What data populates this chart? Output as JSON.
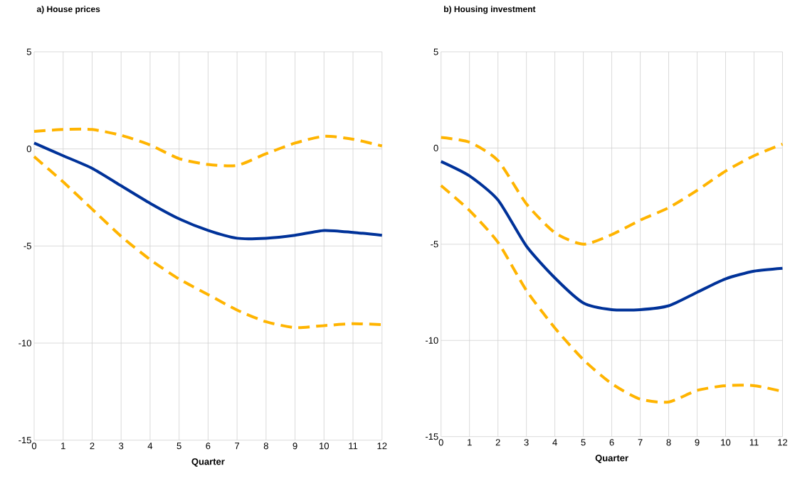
{
  "chart_data": [
    {
      "type": "line",
      "title": "a) House prices",
      "xlabel": "Quarter",
      "x": [
        0,
        1,
        2,
        3,
        4,
        5,
        6,
        7,
        8,
        9,
        10,
        11,
        12
      ],
      "xlim": [
        0,
        12
      ],
      "ylim": [
        -15,
        5
      ],
      "xticks": [
        0,
        1,
        2,
        3,
        4,
        5,
        6,
        7,
        8,
        9,
        10,
        11,
        12
      ],
      "yticks": [
        -15,
        -10,
        -5,
        0,
        5
      ],
      "grid": true,
      "series": [
        {
          "color": "#ffb400",
          "line_style": "dashed",
          "values": [
            0.9,
            1.0,
            1.0,
            0.7,
            0.2,
            -0.5,
            -0.8,
            -0.85,
            -0.25,
            0.3,
            0.65,
            0.5,
            0.15
          ]
        },
        {
          "color": "#ffb400",
          "line_style": "dashed",
          "values": [
            -0.4,
            -1.7,
            -3.1,
            -4.5,
            -5.7,
            -6.7,
            -7.5,
            -8.3,
            -8.9,
            -9.2,
            -9.1,
            -9.0,
            -9.05
          ]
        },
        {
          "color": "#003299",
          "line_style": "solid",
          "values": [
            0.3,
            -0.35,
            -1.0,
            -1.9,
            -2.8,
            -3.6,
            -4.2,
            -4.6,
            -4.6,
            -4.45,
            -4.2,
            -4.3,
            -4.45
          ]
        }
      ]
    },
    {
      "type": "line",
      "title": "b) Housing investment",
      "xlabel": "Quarter",
      "x": [
        0,
        1,
        2,
        3,
        4,
        5,
        6,
        7,
        8,
        9,
        10,
        11,
        12
      ],
      "xlim": [
        0,
        12
      ],
      "ylim": [
        -15,
        5
      ],
      "xticks": [
        0,
        1,
        2,
        3,
        4,
        5,
        6,
        7,
        8,
        9,
        10,
        11,
        12
      ],
      "yticks": [
        -15,
        -10,
        -5,
        0,
        5
      ],
      "grid": true,
      "series": [
        {
          "color": "#ffb400",
          "line_style": "dashed",
          "values": [
            0.55,
            0.3,
            -0.65,
            -2.9,
            -4.4,
            -5.0,
            -4.5,
            -3.75,
            -3.1,
            -2.2,
            -1.2,
            -0.4,
            0.2
          ]
        },
        {
          "color": "#ffb400",
          "line_style": "dashed",
          "values": [
            -1.95,
            -3.25,
            -4.9,
            -7.4,
            -9.35,
            -11.0,
            -12.25,
            -13.05,
            -13.2,
            -12.6,
            -12.35,
            -12.35,
            -12.65
          ]
        },
        {
          "color": "#003299",
          "line_style": "solid",
          "values": [
            -0.7,
            -1.45,
            -2.7,
            -5.1,
            -6.75,
            -8.05,
            -8.4,
            -8.4,
            -8.2,
            -7.5,
            -6.8,
            -6.4,
            -6.25
          ]
        }
      ]
    }
  ]
}
